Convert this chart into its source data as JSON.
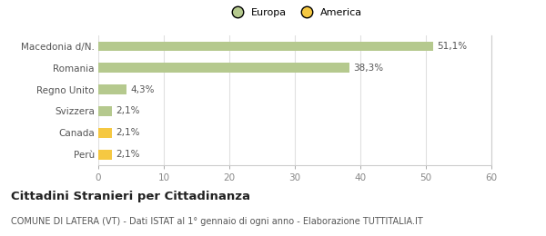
{
  "categories": [
    "Perù",
    "Canada",
    "Svizzera",
    "Regno Unito",
    "Romania",
    "Macedonia d/N."
  ],
  "values": [
    2.1,
    2.1,
    2.1,
    4.3,
    38.3,
    51.1
  ],
  "labels": [
    "2,1%",
    "2,1%",
    "2,1%",
    "4,3%",
    "38,3%",
    "51,1%"
  ],
  "colors": [
    "#f5c842",
    "#f5c842",
    "#b5c98e",
    "#b5c98e",
    "#b5c98e",
    "#b5c98e"
  ],
  "legend_items": [
    {
      "label": "Europa",
      "color": "#b5c98e"
    },
    {
      "label": "America",
      "color": "#f5c842"
    }
  ],
  "xlim": [
    0,
    60
  ],
  "xticks": [
    0,
    10,
    20,
    30,
    40,
    50,
    60
  ],
  "title_bold": "Cittadini Stranieri per Cittadinanza",
  "subtitle": "COMUNE DI LATERA (VT) - Dati ISTAT al 1° gennaio di ogni anno - Elaborazione TUTTITALIA.IT",
  "background_color": "#ffffff",
  "bar_height": 0.45,
  "grid_color": "#e0e0e0",
  "label_fontsize": 7.5,
  "tick_fontsize": 7.5,
  "title_fontsize": 9.5,
  "subtitle_fontsize": 7
}
